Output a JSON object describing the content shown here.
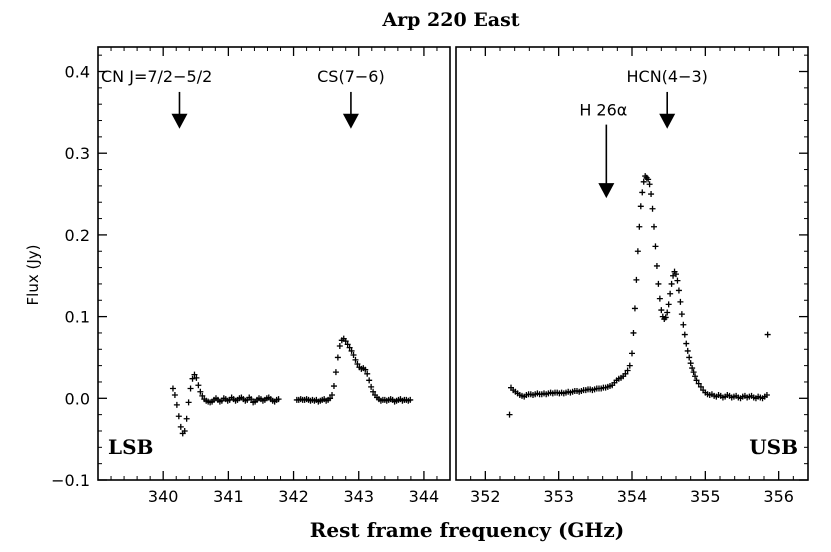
{
  "chart_data": {
    "type": "scatter",
    "title": "Arp 220 East",
    "xlabel": "Rest frame frequency (GHz)",
    "ylabel": "Flux (Jy)",
    "ylim": [
      -0.1,
      0.43
    ],
    "yticks": [
      "−0.1",
      "0.0",
      "0.1",
      "0.2",
      "0.3",
      "0.4"
    ],
    "ytick_values": [
      -0.1,
      0.0,
      0.1,
      0.2,
      0.3,
      0.4
    ],
    "grid": false,
    "marker": "+",
    "panels": [
      {
        "name": "LSB",
        "label": "LSB",
        "xlim": [
          339.0,
          344.4
        ],
        "xticks": [
          340,
          341,
          342,
          343,
          344
        ],
        "annotations": [
          {
            "text": "CN J=7/2−5/2",
            "x": 340.25,
            "arrow_from": 0.375,
            "arrow_to": 0.33
          },
          {
            "text": "CS(7−6)",
            "x": 342.88,
            "arrow_from": 0.375,
            "arrow_to": 0.33
          }
        ],
        "points": [
          [
            340.15,
            0.012
          ],
          [
            340.18,
            0.004
          ],
          [
            340.21,
            -0.008
          ],
          [
            340.24,
            -0.022
          ],
          [
            340.27,
            -0.035
          ],
          [
            340.3,
            -0.043
          ],
          [
            340.33,
            -0.04
          ],
          [
            340.36,
            -0.025
          ],
          [
            340.39,
            -0.005
          ],
          [
            340.42,
            0.012
          ],
          [
            340.45,
            0.024
          ],
          [
            340.48,
            0.029
          ],
          [
            340.51,
            0.025
          ],
          [
            340.54,
            0.016
          ],
          [
            340.57,
            0.008
          ],
          [
            340.6,
            0.003
          ],
          [
            340.63,
            -0.001
          ],
          [
            340.66,
            -0.003
          ],
          [
            340.69,
            -0.004
          ],
          [
            340.72,
            -0.005
          ],
          [
            340.75,
            -0.004
          ],
          [
            340.78,
            -0.002
          ],
          [
            340.81,
            0.0
          ],
          [
            340.84,
            -0.002
          ],
          [
            340.87,
            -0.004
          ],
          [
            340.9,
            -0.003
          ],
          [
            340.93,
            0.0
          ],
          [
            340.96,
            -0.001
          ],
          [
            340.99,
            -0.003
          ],
          [
            341.02,
            -0.002
          ],
          [
            341.05,
            0.001
          ],
          [
            341.08,
            -0.001
          ],
          [
            341.11,
            -0.003
          ],
          [
            341.14,
            -0.002
          ],
          [
            341.17,
            0.0
          ],
          [
            341.2,
            0.001
          ],
          [
            341.23,
            -0.001
          ],
          [
            341.26,
            -0.003
          ],
          [
            341.29,
            -0.002
          ],
          [
            341.32,
            0.001
          ],
          [
            341.35,
            -0.001
          ],
          [
            341.38,
            -0.005
          ],
          [
            341.41,
            -0.004
          ],
          [
            341.44,
            -0.002
          ],
          [
            341.47,
            0.0
          ],
          [
            341.5,
            -0.001
          ],
          [
            341.53,
            -0.003
          ],
          [
            341.56,
            -0.002
          ],
          [
            341.59,
            0.0
          ],
          [
            341.62,
            0.001
          ],
          [
            341.65,
            -0.001
          ],
          [
            341.68,
            -0.003
          ],
          [
            341.71,
            -0.004
          ],
          [
            341.74,
            -0.002
          ],
          [
            341.77,
            -0.001
          ],
          [
            342.05,
            -0.002
          ],
          [
            342.08,
            -0.002
          ],
          [
            342.11,
            -0.001
          ],
          [
            342.14,
            -0.002
          ],
          [
            342.17,
            -0.002
          ],
          [
            342.2,
            -0.001
          ],
          [
            342.23,
            -0.002
          ],
          [
            342.26,
            -0.003
          ],
          [
            342.29,
            -0.002
          ],
          [
            342.32,
            -0.003
          ],
          [
            342.35,
            -0.002
          ],
          [
            342.38,
            -0.004
          ],
          [
            342.41,
            -0.003
          ],
          [
            342.44,
            -0.002
          ],
          [
            342.47,
            -0.001
          ],
          [
            342.5,
            -0.003
          ],
          [
            342.53,
            -0.002
          ],
          [
            342.56,
            0.0
          ],
          [
            342.59,
            0.004
          ],
          [
            342.62,
            0.015
          ],
          [
            342.65,
            0.032
          ],
          [
            342.68,
            0.05
          ],
          [
            342.71,
            0.064
          ],
          [
            342.74,
            0.071
          ],
          [
            342.77,
            0.073
          ],
          [
            342.8,
            0.07
          ],
          [
            342.83,
            0.066
          ],
          [
            342.86,
            0.062
          ],
          [
            342.89,
            0.058
          ],
          [
            342.92,
            0.053
          ],
          [
            342.95,
            0.047
          ],
          [
            342.98,
            0.042
          ],
          [
            343.01,
            0.038
          ],
          [
            343.04,
            0.036
          ],
          [
            343.07,
            0.037
          ],
          [
            343.1,
            0.035
          ],
          [
            343.13,
            0.03
          ],
          [
            343.16,
            0.022
          ],
          [
            343.19,
            0.014
          ],
          [
            343.22,
            0.008
          ],
          [
            343.25,
            0.004
          ],
          [
            343.28,
            0.001
          ],
          [
            343.31,
            -0.001
          ],
          [
            343.34,
            -0.003
          ],
          [
            343.37,
            -0.002
          ],
          [
            343.4,
            -0.002
          ],
          [
            343.43,
            -0.003
          ],
          [
            343.46,
            -0.002
          ],
          [
            343.49,
            -0.001
          ],
          [
            343.52,
            -0.002
          ],
          [
            343.55,
            -0.004
          ],
          [
            343.58,
            -0.003
          ],
          [
            343.61,
            -0.002
          ],
          [
            343.64,
            -0.001
          ],
          [
            343.67,
            -0.003
          ],
          [
            343.7,
            -0.002
          ],
          [
            343.73,
            -0.002
          ],
          [
            343.76,
            -0.003
          ],
          [
            343.79,
            -0.002
          ]
        ]
      },
      {
        "name": "USB",
        "label": "USB",
        "xlim": [
          351.6,
          356.4
        ],
        "xticks": [
          352,
          353,
          354,
          355,
          356
        ],
        "annotations": [
          {
            "text": "H 26α",
            "x": 353.65,
            "arrow_from": 0.335,
            "arrow_to": 0.245
          },
          {
            "text": "HCN(4−3)",
            "x": 354.48,
            "arrow_from": 0.375,
            "arrow_to": 0.33
          }
        ],
        "points": [
          [
            352.33,
            -0.02
          ],
          [
            352.35,
            0.013
          ],
          [
            352.38,
            0.01
          ],
          [
            352.41,
            0.008
          ],
          [
            352.44,
            0.006
          ],
          [
            352.47,
            0.004
          ],
          [
            352.5,
            0.003
          ],
          [
            352.53,
            0.002
          ],
          [
            352.56,
            0.004
          ],
          [
            352.59,
            0.005
          ],
          [
            352.62,
            0.005
          ],
          [
            352.65,
            0.004
          ],
          [
            352.68,
            0.005
          ],
          [
            352.71,
            0.006
          ],
          [
            352.74,
            0.005
          ],
          [
            352.77,
            0.005
          ],
          [
            352.8,
            0.006
          ],
          [
            352.83,
            0.005
          ],
          [
            352.86,
            0.006
          ],
          [
            352.89,
            0.007
          ],
          [
            352.92,
            0.006
          ],
          [
            352.95,
            0.007
          ],
          [
            352.98,
            0.007
          ],
          [
            353.01,
            0.006
          ],
          [
            353.04,
            0.007
          ],
          [
            353.07,
            0.006
          ],
          [
            353.1,
            0.007
          ],
          [
            353.13,
            0.008
          ],
          [
            353.16,
            0.007
          ],
          [
            353.19,
            0.008
          ],
          [
            353.22,
            0.009
          ],
          [
            353.25,
            0.009
          ],
          [
            353.28,
            0.008
          ],
          [
            353.31,
            0.009
          ],
          [
            353.34,
            0.01
          ],
          [
            353.37,
            0.01
          ],
          [
            353.4,
            0.011
          ],
          [
            353.43,
            0.011
          ],
          [
            353.46,
            0.01
          ],
          [
            353.49,
            0.011
          ],
          [
            353.52,
            0.012
          ],
          [
            353.55,
            0.012
          ],
          [
            353.58,
            0.012
          ],
          [
            353.61,
            0.013
          ],
          [
            353.64,
            0.013
          ],
          [
            353.67,
            0.014
          ],
          [
            353.7,
            0.015
          ],
          [
            353.73,
            0.016
          ],
          [
            353.76,
            0.019
          ],
          [
            353.79,
            0.022
          ],
          [
            353.82,
            0.024
          ],
          [
            353.85,
            0.025
          ],
          [
            353.88,
            0.027
          ],
          [
            353.91,
            0.03
          ],
          [
            353.94,
            0.034
          ],
          [
            353.97,
            0.04
          ],
          [
            354.0,
            0.055
          ],
          [
            354.02,
            0.08
          ],
          [
            354.04,
            0.11
          ],
          [
            354.06,
            0.145
          ],
          [
            354.08,
            0.18
          ],
          [
            354.1,
            0.21
          ],
          [
            354.12,
            0.235
          ],
          [
            354.14,
            0.252
          ],
          [
            354.16,
            0.265
          ],
          [
            354.18,
            0.272
          ],
          [
            354.2,
            0.27
          ],
          [
            354.22,
            0.268
          ],
          [
            354.24,
            0.262
          ],
          [
            354.26,
            0.25
          ],
          [
            354.28,
            0.232
          ],
          [
            354.3,
            0.21
          ],
          [
            354.32,
            0.186
          ],
          [
            354.34,
            0.162
          ],
          [
            354.36,
            0.14
          ],
          [
            354.38,
            0.122
          ],
          [
            354.4,
            0.108
          ],
          [
            354.42,
            0.1
          ],
          [
            354.44,
            0.097
          ],
          [
            354.46,
            0.099
          ],
          [
            354.48,
            0.105
          ],
          [
            354.5,
            0.115
          ],
          [
            354.52,
            0.128
          ],
          [
            354.54,
            0.14
          ],
          [
            354.56,
            0.15
          ],
          [
            354.58,
            0.155
          ],
          [
            354.6,
            0.152
          ],
          [
            354.62,
            0.144
          ],
          [
            354.64,
            0.132
          ],
          [
            354.66,
            0.118
          ],
          [
            354.68,
            0.103
          ],
          [
            354.7,
            0.09
          ],
          [
            354.72,
            0.078
          ],
          [
            354.74,
            0.067
          ],
          [
            354.76,
            0.058
          ],
          [
            354.78,
            0.05
          ],
          [
            354.8,
            0.043
          ],
          [
            354.82,
            0.037
          ],
          [
            354.84,
            0.032
          ],
          [
            354.86,
            0.027
          ],
          [
            354.88,
            0.022
          ],
          [
            354.91,
            0.018
          ],
          [
            354.94,
            0.014
          ],
          [
            354.97,
            0.01
          ],
          [
            355.0,
            0.007
          ],
          [
            355.03,
            0.005
          ],
          [
            355.06,
            0.004
          ],
          [
            355.09,
            0.005
          ],
          [
            355.12,
            0.003
          ],
          [
            355.15,
            0.002
          ],
          [
            355.18,
            0.004
          ],
          [
            355.21,
            0.003
          ],
          [
            355.24,
            0.001
          ],
          [
            355.27,
            0.002
          ],
          [
            355.3,
            0.004
          ],
          [
            355.33,
            0.003
          ],
          [
            355.36,
            0.001
          ],
          [
            355.39,
            0.002
          ],
          [
            355.42,
            0.003
          ],
          [
            355.45,
            0.001
          ],
          [
            355.48,
            0.0
          ],
          [
            355.51,
            0.002
          ],
          [
            355.54,
            0.003
          ],
          [
            355.57,
            0.001
          ],
          [
            355.6,
            0.002
          ],
          [
            355.63,
            0.003
          ],
          [
            355.66,
            0.001
          ],
          [
            355.69,
            0.0
          ],
          [
            355.72,
            0.002
          ],
          [
            355.75,
            0.001
          ],
          [
            355.78,
            0.0
          ],
          [
            355.81,
            0.002
          ],
          [
            355.84,
            0.004
          ],
          [
            355.85,
            0.078
          ]
        ]
      }
    ]
  }
}
